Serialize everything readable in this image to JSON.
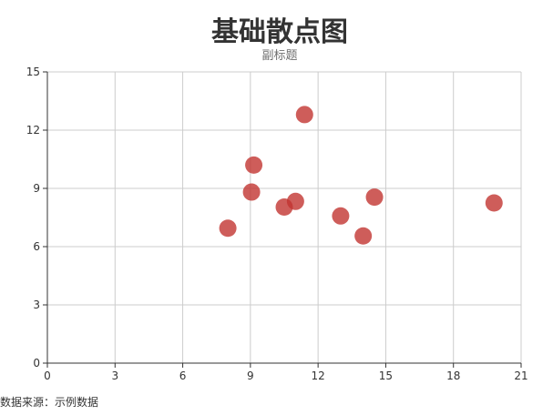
{
  "chart_data": {
    "type": "scatter",
    "title": "基础散点图",
    "subtitle": "副标题",
    "xlabel": "",
    "ylabel": "",
    "xlim": [
      0,
      21
    ],
    "ylim": [
      0,
      15
    ],
    "xticks": [
      0,
      3,
      6,
      9,
      12,
      15,
      18,
      21
    ],
    "yticks": [
      0,
      3,
      6,
      9,
      12,
      15
    ],
    "grid": true,
    "series": [
      {
        "color": "#c23531",
        "points": [
          {
            "x": 8.0,
            "y": 6.95
          },
          {
            "x": 9.05,
            "y": 8.81
          },
          {
            "x": 9.15,
            "y": 10.2
          },
          {
            "x": 10.5,
            "y": 8.04
          },
          {
            "x": 11.0,
            "y": 8.33
          },
          {
            "x": 11.4,
            "y": 12.8
          },
          {
            "x": 13.0,
            "y": 7.58
          },
          {
            "x": 14.0,
            "y": 6.55
          },
          {
            "x": 14.5,
            "y": 8.55
          },
          {
            "x": 19.8,
            "y": 8.25
          }
        ]
      }
    ]
  },
  "source_note": "数据来源：示例数据"
}
